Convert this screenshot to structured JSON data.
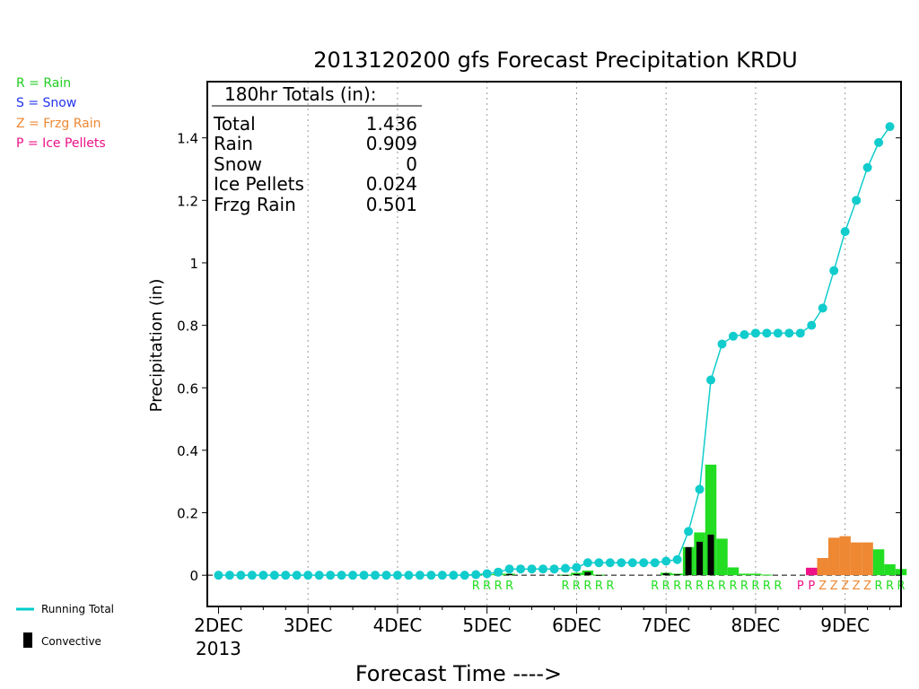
{
  "chart_data": {
    "type": "bar",
    "title": "2013120200 gfs Forecast Precipitation KRDU",
    "xlabel": "Forecast Time ---->",
    "ylabel": "Precipitation (in)",
    "x_tick_labels": [
      "2DEC",
      "3DEC",
      "4DEC",
      "5DEC",
      "6DEC",
      "7DEC",
      "8DEC",
      "9DEC"
    ],
    "x_year_label": "2013",
    "y_tick_labels": [
      "0",
      "0.2",
      "0.4",
      "0.6",
      "0.8",
      "1",
      "1.2",
      "1.4"
    ],
    "ylim": [
      -0.1,
      1.58
    ],
    "xlim_hours": [
      -3,
      180
    ],
    "grid": "vertical dotted at each day",
    "legend_types": [
      {
        "text": "R = Rain",
        "color": "#22cc22"
      },
      {
        "text": "S = Snow",
        "color": "#2233ee"
      },
      {
        "text": "Z = Frzg Rain",
        "color": "#ee8833"
      },
      {
        "text": "P = Ice Pellets",
        "color": "#ee1188"
      }
    ],
    "legend_lines": [
      {
        "text": "Running Total",
        "color": "#00cccc"
      },
      {
        "text": "Convective",
        "color": "#000000"
      }
    ],
    "totals_box": {
      "header": "180hr Totals (in):",
      "rows": [
        {
          "label": "Total",
          "value": "1.436"
        },
        {
          "label": "Rain",
          "value": "0.909"
        },
        {
          "label": "Snow",
          "value": "0"
        },
        {
          "label": "Ice Pellets",
          "value": "0.024"
        },
        {
          "label": "Frzg Rain",
          "value": "0.501"
        }
      ]
    },
    "colors": {
      "rain": "#22dd22",
      "snow": "#2233ee",
      "frzg_rain": "#ee8833",
      "ice_pellets": "#ee1188",
      "convective": "#000000",
      "running_total": "#11cccc"
    },
    "running_total": {
      "hours": [
        0,
        3,
        6,
        9,
        12,
        15,
        18,
        21,
        24,
        27,
        30,
        33,
        36,
        39,
        42,
        45,
        48,
        51,
        54,
        57,
        60,
        63,
        66,
        69,
        72,
        75,
        78,
        81,
        84,
        87,
        90,
        93,
        96,
        99,
        102,
        105,
        108,
        111,
        114,
        117,
        120,
        123,
        126,
        129,
        132,
        135,
        138,
        141,
        144,
        147,
        150,
        153,
        156,
        159,
        162,
        165,
        168,
        171,
        174,
        177,
        180
      ],
      "values": [
        0,
        0,
        0,
        0,
        0,
        0,
        0,
        0,
        0,
        0,
        0,
        0,
        0,
        0,
        0,
        0,
        0,
        0,
        0,
        0,
        0,
        0,
        0,
        0.002,
        0.005,
        0.01,
        0.02,
        0.02,
        0.02,
        0.02,
        0.02,
        0.022,
        0.025,
        0.04,
        0.04,
        0.04,
        0.04,
        0.04,
        0.04,
        0.04,
        0.045,
        0.05,
        0.14,
        0.275,
        0.625,
        0.74,
        0.765,
        0.77,
        0.775,
        0.775,
        0.775,
        0.775,
        0.775,
        0.8,
        0.855,
        0.975,
        1.1,
        1.2,
        1.305,
        1.385,
        1.436
      ]
    },
    "bars": [
      {
        "hour": 69,
        "type": "R",
        "value": 0.002,
        "convective": 0.002
      },
      {
        "hour": 72,
        "type": "R",
        "value": 0.003,
        "convective": 0.002
      },
      {
        "hour": 75,
        "type": "R",
        "value": 0.005,
        "convective": 0.003
      },
      {
        "hour": 78,
        "type": "R",
        "value": 0.005,
        "convective": 0.004
      },
      {
        "hour": 93,
        "type": "R",
        "value": 0.002,
        "convective": 0.001
      },
      {
        "hour": 96,
        "type": "R",
        "value": 0.008,
        "convective": 0.004
      },
      {
        "hour": 99,
        "type": "R",
        "value": 0.015,
        "convective": 0.01
      },
      {
        "hour": 102,
        "type": "R",
        "value": 0.002,
        "convective": 0.001
      },
      {
        "hour": 120,
        "type": "R",
        "value": 0.008,
        "convective": 0.006
      },
      {
        "hour": 123,
        "type": "R",
        "value": 0.005,
        "convective": 0.003
      },
      {
        "hour": 126,
        "type": "R",
        "value": 0.09,
        "convective": 0.09
      },
      {
        "hour": 129,
        "type": "R",
        "value": 0.137,
        "convective": 0.107
      },
      {
        "hour": 132,
        "type": "R",
        "value": 0.354,
        "convective": 0.13
      },
      {
        "hour": 135,
        "type": "R",
        "value": 0.117,
        "convective": 0.0
      },
      {
        "hour": 138,
        "type": "R",
        "value": 0.025,
        "convective": 0.0
      },
      {
        "hour": 141,
        "type": "R",
        "value": 0.005,
        "convective": 0.0
      },
      {
        "hour": 144,
        "type": "R",
        "value": 0.005,
        "convective": 0.0
      },
      {
        "hour": 147,
        "type": "R",
        "value": 0.002,
        "convective": 0.0
      },
      {
        "hour": 159,
        "type": "P",
        "value": 0.024,
        "convective": 0.0
      },
      {
        "hour": 162,
        "type": "Z",
        "value": 0.055,
        "convective": 0.0
      },
      {
        "hour": 165,
        "type": "Z",
        "value": 0.12,
        "convective": 0.0
      },
      {
        "hour": 168,
        "type": "Z",
        "value": 0.125,
        "convective": 0.0
      },
      {
        "hour": 171,
        "type": "Z",
        "value": 0.105,
        "convective": 0.0
      },
      {
        "hour": 174,
        "type": "Z",
        "value": 0.105,
        "convective": 0.0
      },
      {
        "hour": 177,
        "type": "R",
        "value": 0.083,
        "convective": 0.0
      },
      {
        "hour": 180,
        "type": "R",
        "value": 0.035,
        "convective": 0.0
      },
      {
        "hour": 183,
        "type": "R",
        "value": 0.02,
        "convective": 0.0
      }
    ],
    "type_markers": [
      {
        "hour": 69,
        "letter": "R"
      },
      {
        "hour": 72,
        "letter": "R"
      },
      {
        "hour": 75,
        "letter": "R"
      },
      {
        "hour": 78,
        "letter": "R"
      },
      {
        "hour": 93,
        "letter": "R"
      },
      {
        "hour": 96,
        "letter": "R"
      },
      {
        "hour": 99,
        "letter": "R"
      },
      {
        "hour": 102,
        "letter": "R"
      },
      {
        "hour": 105,
        "letter": "R"
      },
      {
        "hour": 117,
        "letter": "R"
      },
      {
        "hour": 120,
        "letter": "R"
      },
      {
        "hour": 123,
        "letter": "R"
      },
      {
        "hour": 126,
        "letter": "R"
      },
      {
        "hour": 129,
        "letter": "R"
      },
      {
        "hour": 132,
        "letter": "R"
      },
      {
        "hour": 135,
        "letter": "R"
      },
      {
        "hour": 138,
        "letter": "R"
      },
      {
        "hour": 141,
        "letter": "R"
      },
      {
        "hour": 144,
        "letter": "R"
      },
      {
        "hour": 147,
        "letter": "R"
      },
      {
        "hour": 150,
        "letter": "R"
      },
      {
        "hour": 156,
        "letter": "P"
      },
      {
        "hour": 159,
        "letter": "P"
      },
      {
        "hour": 162,
        "letter": "Z"
      },
      {
        "hour": 165,
        "letter": "Z"
      },
      {
        "hour": 168,
        "letter": "Z"
      },
      {
        "hour": 171,
        "letter": "Z"
      },
      {
        "hour": 174,
        "letter": "Z"
      },
      {
        "hour": 177,
        "letter": "R"
      },
      {
        "hour": 180,
        "letter": "R"
      },
      {
        "hour": 183,
        "letter": "R"
      }
    ]
  }
}
